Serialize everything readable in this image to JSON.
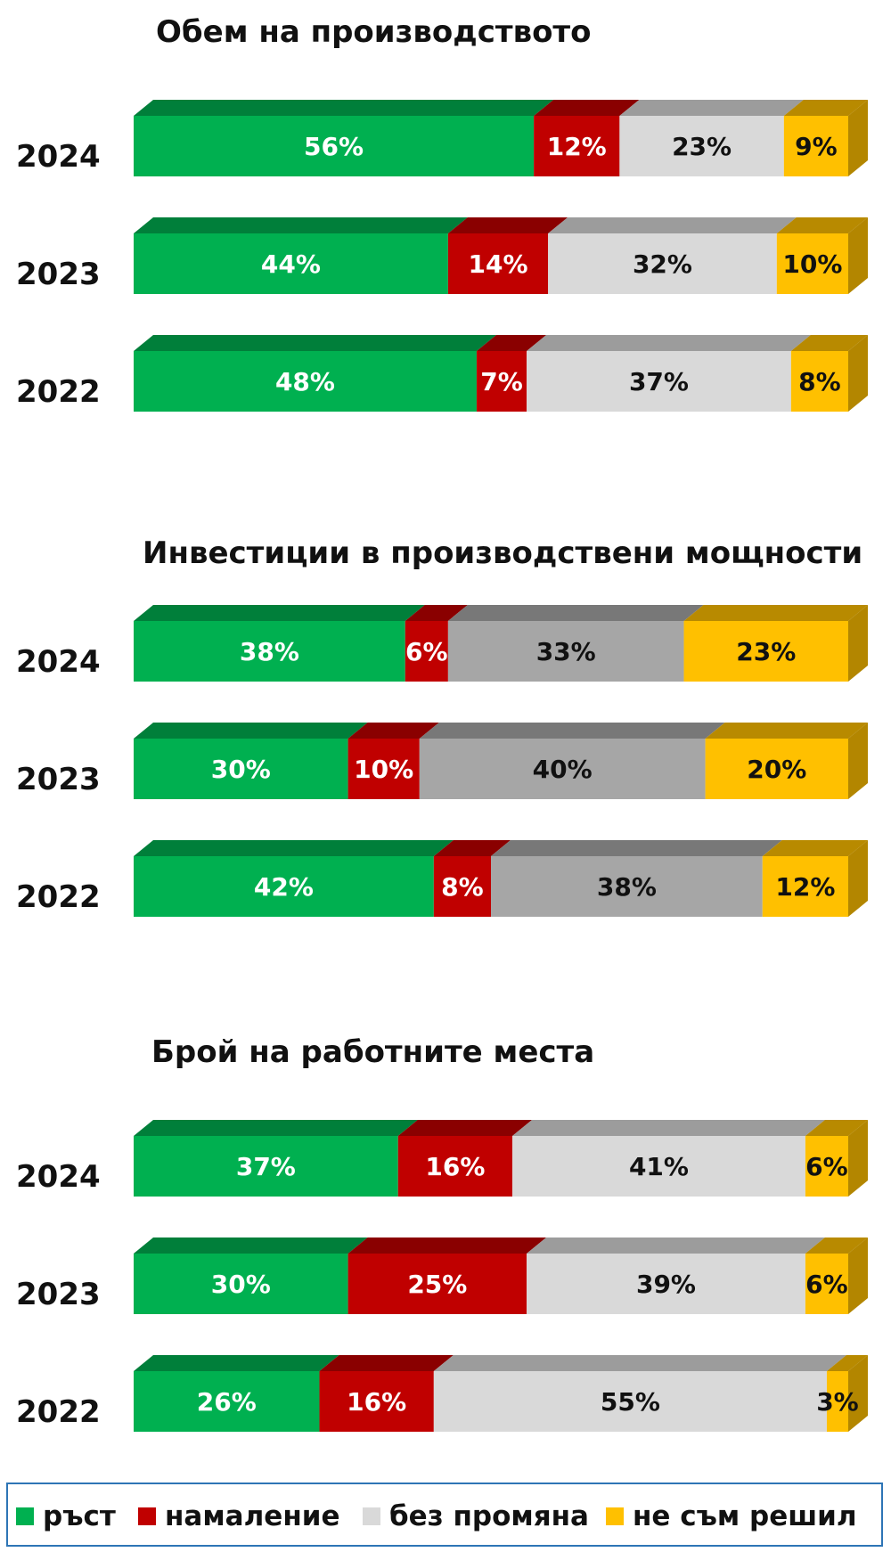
{
  "chart_data": [
    {
      "type": "bar",
      "stacked": true,
      "orientation": "horizontal",
      "title": "Обем на производството",
      "categories": [
        "2024",
        "2023",
        "2022"
      ],
      "series": [
        {
          "name": "ръст",
          "values": [
            56,
            44,
            48
          ],
          "labels": [
            "56%",
            "44%",
            "48%"
          ]
        },
        {
          "name": "намаление",
          "values": [
            12,
            14,
            7
          ],
          "labels": [
            "12%",
            "14%",
            "7%"
          ]
        },
        {
          "name": "без промяна",
          "values": [
            23,
            32,
            37
          ],
          "labels": [
            "23%",
            "32%",
            "37%"
          ]
        },
        {
          "name": "не съм решил",
          "values": [
            9,
            10,
            8
          ],
          "labels": [
            "9%",
            "10%",
            "8%"
          ]
        }
      ]
    },
    {
      "type": "bar",
      "stacked": true,
      "orientation": "horizontal",
      "title": "Инвестиции в производствени мощности",
      "categories": [
        "2024",
        "2023",
        "2022"
      ],
      "series": [
        {
          "name": "ръст",
          "values": [
            38,
            30,
            42
          ],
          "labels": [
            "38%",
            "30%",
            "42%"
          ]
        },
        {
          "name": "намаление",
          "values": [
            6,
            10,
            8
          ],
          "labels": [
            "6%",
            "10%",
            "8%"
          ]
        },
        {
          "name": "без промяна",
          "values": [
            33,
            40,
            38
          ],
          "labels": [
            "33%",
            "40%",
            "38%"
          ]
        },
        {
          "name": "не съм решил",
          "values": [
            23,
            20,
            12
          ],
          "labels": [
            "23%",
            "20%",
            "12%"
          ]
        }
      ]
    },
    {
      "type": "bar",
      "stacked": true,
      "orientation": "horizontal",
      "title": "Брой на работните места",
      "categories": [
        "2024",
        "2023",
        "2022"
      ],
      "series": [
        {
          "name": "ръст",
          "values": [
            37,
            30,
            26
          ],
          "labels": [
            "37%",
            "30%",
            "26%"
          ]
        },
        {
          "name": "намаление",
          "values": [
            16,
            25,
            16
          ],
          "labels": [
            "16%",
            "25%",
            "16%"
          ]
        },
        {
          "name": "без промяна",
          "values": [
            41,
            39,
            55
          ],
          "labels": [
            "41%",
            "39%",
            "55%"
          ]
        },
        {
          "name": "не съм решил",
          "values": [
            6,
            6,
            3
          ],
          "labels": [
            "6%",
            "6%",
            "3%"
          ]
        }
      ]
    }
  ],
  "legend": {
    "placement": "bottom",
    "items": [
      {
        "label": "ръст",
        "color": "#00b050"
      },
      {
        "label": "намаление",
        "color": "#c00000"
      },
      {
        "label": "без промяна",
        "color": "#d9d9d9"
      },
      {
        "label": "не съм решил",
        "color": "#ffc000"
      }
    ]
  },
  "colors": {
    "growth": "#00b050",
    "decrease": "#c00000",
    "no_change_light": "#d9d9d9",
    "no_change_dark": "#a6a6a6",
    "undecided": "#ffc000"
  }
}
